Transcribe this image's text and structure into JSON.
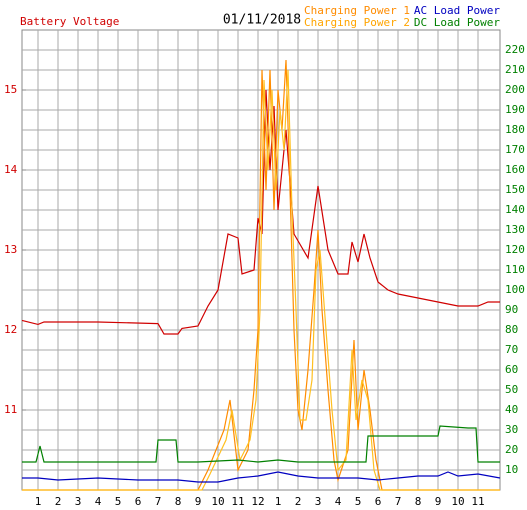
{
  "chart_data": {
    "type": "line",
    "title": "01/11/2018",
    "xlim": [
      0.2,
      24.1
    ],
    "xticks": [
      {
        "value": 1,
        "label": "1"
      },
      {
        "value": 2,
        "label": "2"
      },
      {
        "value": 3,
        "label": "3"
      },
      {
        "value": 4,
        "label": "4"
      },
      {
        "value": 5,
        "label": "5"
      },
      {
        "value": 6,
        "label": "6"
      },
      {
        "value": 7,
        "label": "7"
      },
      {
        "value": 8,
        "label": "8"
      },
      {
        "value": 9,
        "label": "9"
      },
      {
        "value": 10,
        "label": "10"
      },
      {
        "value": 11,
        "label": "11"
      },
      {
        "value": 12,
        "label": "12"
      },
      {
        "value": 13,
        "label": "1"
      },
      {
        "value": 14,
        "label": "2"
      },
      {
        "value": 15,
        "label": "3"
      },
      {
        "value": 16,
        "label": "4"
      },
      {
        "value": 17,
        "label": "5"
      },
      {
        "value": 18,
        "label": "6"
      },
      {
        "value": 19,
        "label": "7"
      },
      {
        "value": 20,
        "label": "8"
      },
      {
        "value": 21,
        "label": "9"
      },
      {
        "value": 22,
        "label": "10"
      },
      {
        "value": 23,
        "label": "11"
      }
    ],
    "ylim": [
      10,
      15.75
    ],
    "yticks": [
      11,
      12,
      13,
      14,
      15
    ],
    "y2lim": [
      0,
      230
    ],
    "y2ticks": [
      10,
      20,
      30,
      40,
      50,
      60,
      70,
      80,
      90,
      100,
      110,
      120,
      130,
      140,
      150,
      160,
      170,
      180,
      190,
      200,
      210,
      220
    ],
    "grid": true,
    "series": [
      {
        "name": "Battery Voltage",
        "color": "#d00000",
        "axis": "y",
        "x": [
          0.2,
          1.0,
          1.3,
          4,
          7,
          7.3,
          8,
          8.2,
          9,
          9.5,
          10,
          10.5,
          11,
          11.2,
          11.8,
          12,
          12.2,
          12.4,
          12.6,
          12.8,
          13,
          13.4,
          13.8,
          14.5,
          15,
          15.5,
          16,
          16.5,
          16.7,
          17,
          17.3,
          17.6,
          18,
          18.5,
          19,
          20,
          21,
          22,
          23,
          23.5,
          24.1
        ],
        "values": [
          12.12,
          12.07,
          12.1,
          12.1,
          12.08,
          11.95,
          11.95,
          12.02,
          12.05,
          12.3,
          12.5,
          13.2,
          13.15,
          12.7,
          12.75,
          13.4,
          13.2,
          15.0,
          14.0,
          14.8,
          13.5,
          14.5,
          13.2,
          12.9,
          13.8,
          13.0,
          12.7,
          12.7,
          13.1,
          12.85,
          13.2,
          12.9,
          12.6,
          12.5,
          12.45,
          12.4,
          12.35,
          12.3,
          12.3,
          12.35,
          12.35
        ]
      },
      {
        "name": "Charging Power 1",
        "color": "#ff8c00",
        "axis": "y2",
        "x": [
          0.2,
          9,
          9.5,
          10.3,
          10.6,
          11,
          11.5,
          11.8,
          12,
          12.2,
          12.4,
          12.6,
          12.8,
          13,
          13.2,
          13.4,
          13.6,
          13.8,
          14,
          14.2,
          14.5,
          14.8,
          15,
          15.2,
          15.5,
          15.8,
          16,
          16.5,
          16.8,
          17,
          17.3,
          17.6,
          17.9,
          18.2,
          24.1
        ],
        "values": [
          0,
          0,
          10,
          30,
          45,
          10,
          20,
          50,
          80,
          210,
          150,
          210,
          140,
          200,
          180,
          215,
          150,
          80,
          40,
          30,
          60,
          100,
          130,
          90,
          50,
          15,
          5,
          20,
          75,
          30,
          60,
          40,
          15,
          0,
          0
        ]
      },
      {
        "name": "Charging Power 2",
        "color": "#ffc020",
        "axis": "y2",
        "x": [
          0.2,
          9.2,
          9.6,
          10.4,
          10.7,
          11.1,
          11.6,
          11.9,
          12.1,
          12.3,
          12.5,
          12.7,
          12.9,
          13.1,
          13.3,
          13.5,
          13.7,
          13.9,
          14.1,
          14.4,
          14.7,
          14.9,
          15.1,
          15.4,
          15.7,
          16,
          16.4,
          16.7,
          16.9,
          17.2,
          17.5,
          17.8,
          18.1,
          24.1
        ],
        "values": [
          0,
          0,
          8,
          25,
          40,
          15,
          25,
          45,
          90,
          205,
          160,
          200,
          150,
          190,
          170,
          210,
          140,
          90,
          35,
          35,
          55,
          110,
          120,
          80,
          40,
          10,
          15,
          70,
          35,
          55,
          45,
          10,
          0,
          0
        ]
      },
      {
        "name": "AC Load Power",
        "color": "#0000c0",
        "axis": "y2",
        "x": [
          0.2,
          1,
          2,
          4,
          6,
          8,
          9,
          10,
          11,
          12,
          13,
          13.5,
          14,
          15,
          16,
          17,
          18,
          19,
          20,
          21,
          21.5,
          22,
          23,
          24.1
        ],
        "values": [
          6,
          6,
          5,
          6,
          5,
          5,
          4,
          4,
          6,
          7,
          9,
          8,
          7,
          6,
          6,
          6,
          5,
          6,
          7,
          7,
          9,
          7,
          8,
          6
        ]
      },
      {
        "name": "DC Load Power",
        "color": "#008000",
        "axis": "y2",
        "x": [
          0.2,
          0.9,
          1.1,
          1.3,
          6.9,
          7.0,
          7.9,
          8.0,
          9,
          11,
          12,
          13,
          14,
          17.4,
          17.5,
          21,
          21.1,
          22.5,
          22.9,
          23,
          24.1
        ],
        "values": [
          14,
          14,
          22,
          14,
          14,
          25,
          25,
          14,
          14,
          15,
          14,
          15,
          14,
          14,
          27,
          27,
          32,
          31,
          31,
          14,
          14
        ]
      }
    ]
  }
}
